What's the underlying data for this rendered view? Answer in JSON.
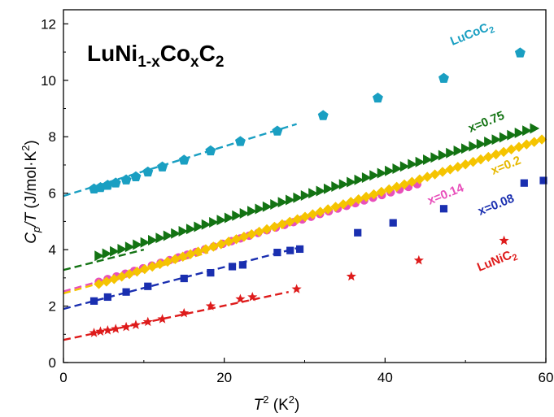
{
  "chart_data": {
    "type": "scatter",
    "title": "LuNi1-xCoxC2",
    "title_parts": {
      "base": "LuNi",
      "sub1": "1-x",
      "mid": "Co",
      "sub2": "x",
      "mid2": "C",
      "sub3": "2"
    },
    "xlabel": "T² (K²)",
    "ylabel": "Cp/T (J/mol·K²)",
    "xlabel_parts": {
      "sym": "T",
      "sup": "2",
      "rest": " (K",
      "rest_sup": "2",
      "close": ")"
    },
    "ylabel_parts": {
      "sym1": "C",
      "sub": "p",
      "sym2": "/T",
      "rest": " (J/mol·K",
      "rest_sup": "2",
      "close": ")"
    },
    "xlim": [
      0,
      60
    ],
    "ylim": [
      0,
      12.5
    ],
    "xticks": [
      0,
      20,
      40,
      60
    ],
    "yticks": [
      0,
      2,
      4,
      6,
      8,
      10,
      12
    ],
    "grid": false,
    "legend": "none",
    "series": [
      {
        "name": "LuCoC2",
        "label_parts": {
          "base": "LuCoC",
          "sub": "2"
        },
        "color": "#1a9fc2",
        "marker": "pentagon",
        "x": [
          3.8,
          4.6,
          5.5,
          6.5,
          7.8,
          9.0,
          10.5,
          12.3,
          15.0,
          18.3,
          22.0,
          26.6,
          32.3,
          39.1,
          47.3,
          56.8
        ],
        "y": [
          6.15,
          6.2,
          6.28,
          6.36,
          6.47,
          6.58,
          6.75,
          6.93,
          7.17,
          7.5,
          7.83,
          8.2,
          8.75,
          9.37,
          10.07,
          10.97
        ],
        "fit": {
          "x0": 0,
          "y0": 5.9,
          "x1": 29,
          "y1": 8.45
        }
      },
      {
        "name": "x=0.75",
        "label_parts": {
          "base": "x=0.75"
        },
        "color": "#137313",
        "marker": "triangle-right",
        "dense": {
          "x_start": 4.4,
          "x_end": 59.2,
          "step": 0.95,
          "y_start": 3.78,
          "y_end": 8.35,
          "curve": 0.0
        },
        "fit": {
          "x0": 0,
          "y0": 3.28,
          "x1": 10,
          "y1": 4.0
        }
      },
      {
        "name": "x=0.14",
        "label_parts": {
          "base": "x=0.14"
        },
        "color": "#e84fbb",
        "marker": "circle",
        "dense": {
          "x_start": 4.4,
          "x_end": 44.0,
          "step": 1.1,
          "y_start": 2.86,
          "y_end": 6.32,
          "curve": 0.0
        },
        "fit": {
          "x0": 0,
          "y0": 2.52,
          "x1": 16,
          "y1": 3.8
        }
      },
      {
        "name": "x=0.2",
        "label_parts": {
          "base": "x=0.2"
        },
        "color": "#f5c400",
        "marker": "diamond",
        "dense": {
          "x_start": 4.4,
          "x_end": 60.0,
          "step": 0.95,
          "y_start": 2.78,
          "y_end": 7.95,
          "curve": 0.0
        },
        "fit": {
          "x0": 0,
          "y0": 2.45,
          "x1": 18,
          "y1": 3.9
        }
      },
      {
        "name": "x=0.08",
        "label_parts": {
          "base": "x=0.08"
        },
        "color": "#1a2fb0",
        "marker": "square",
        "x": [
          3.8,
          5.5,
          7.8,
          10.5,
          15.0,
          18.3,
          21.0,
          22.3,
          26.6,
          28.2,
          29.4,
          36.6,
          41.0,
          47.3,
          57.3,
          59.7
        ],
        "y": [
          2.18,
          2.32,
          2.5,
          2.7,
          2.98,
          3.18,
          3.4,
          3.46,
          3.9,
          3.97,
          4.02,
          4.6,
          4.95,
          5.45,
          6.36,
          6.45
        ],
        "fit": {
          "x0": 0,
          "y0": 1.9,
          "x1": 29,
          "y1": 4.05
        }
      },
      {
        "name": "LuNiC2",
        "label_parts": {
          "base": "LuNiC",
          "sub": "2"
        },
        "color": "#de1b1b",
        "marker": "star",
        "x": [
          3.8,
          4.6,
          5.5,
          6.5,
          7.8,
          9.0,
          10.5,
          12.3,
          15.0,
          18.3,
          22.0,
          23.5,
          29.0,
          35.8,
          44.2,
          54.8
        ],
        "y": [
          1.05,
          1.1,
          1.14,
          1.19,
          1.26,
          1.33,
          1.44,
          1.54,
          1.75,
          2.0,
          2.25,
          2.32,
          2.6,
          3.05,
          3.62,
          4.32
        ],
        "fit": {
          "x0": 0,
          "y0": 0.8,
          "x1": 28,
          "y1": 2.5
        }
      }
    ]
  }
}
